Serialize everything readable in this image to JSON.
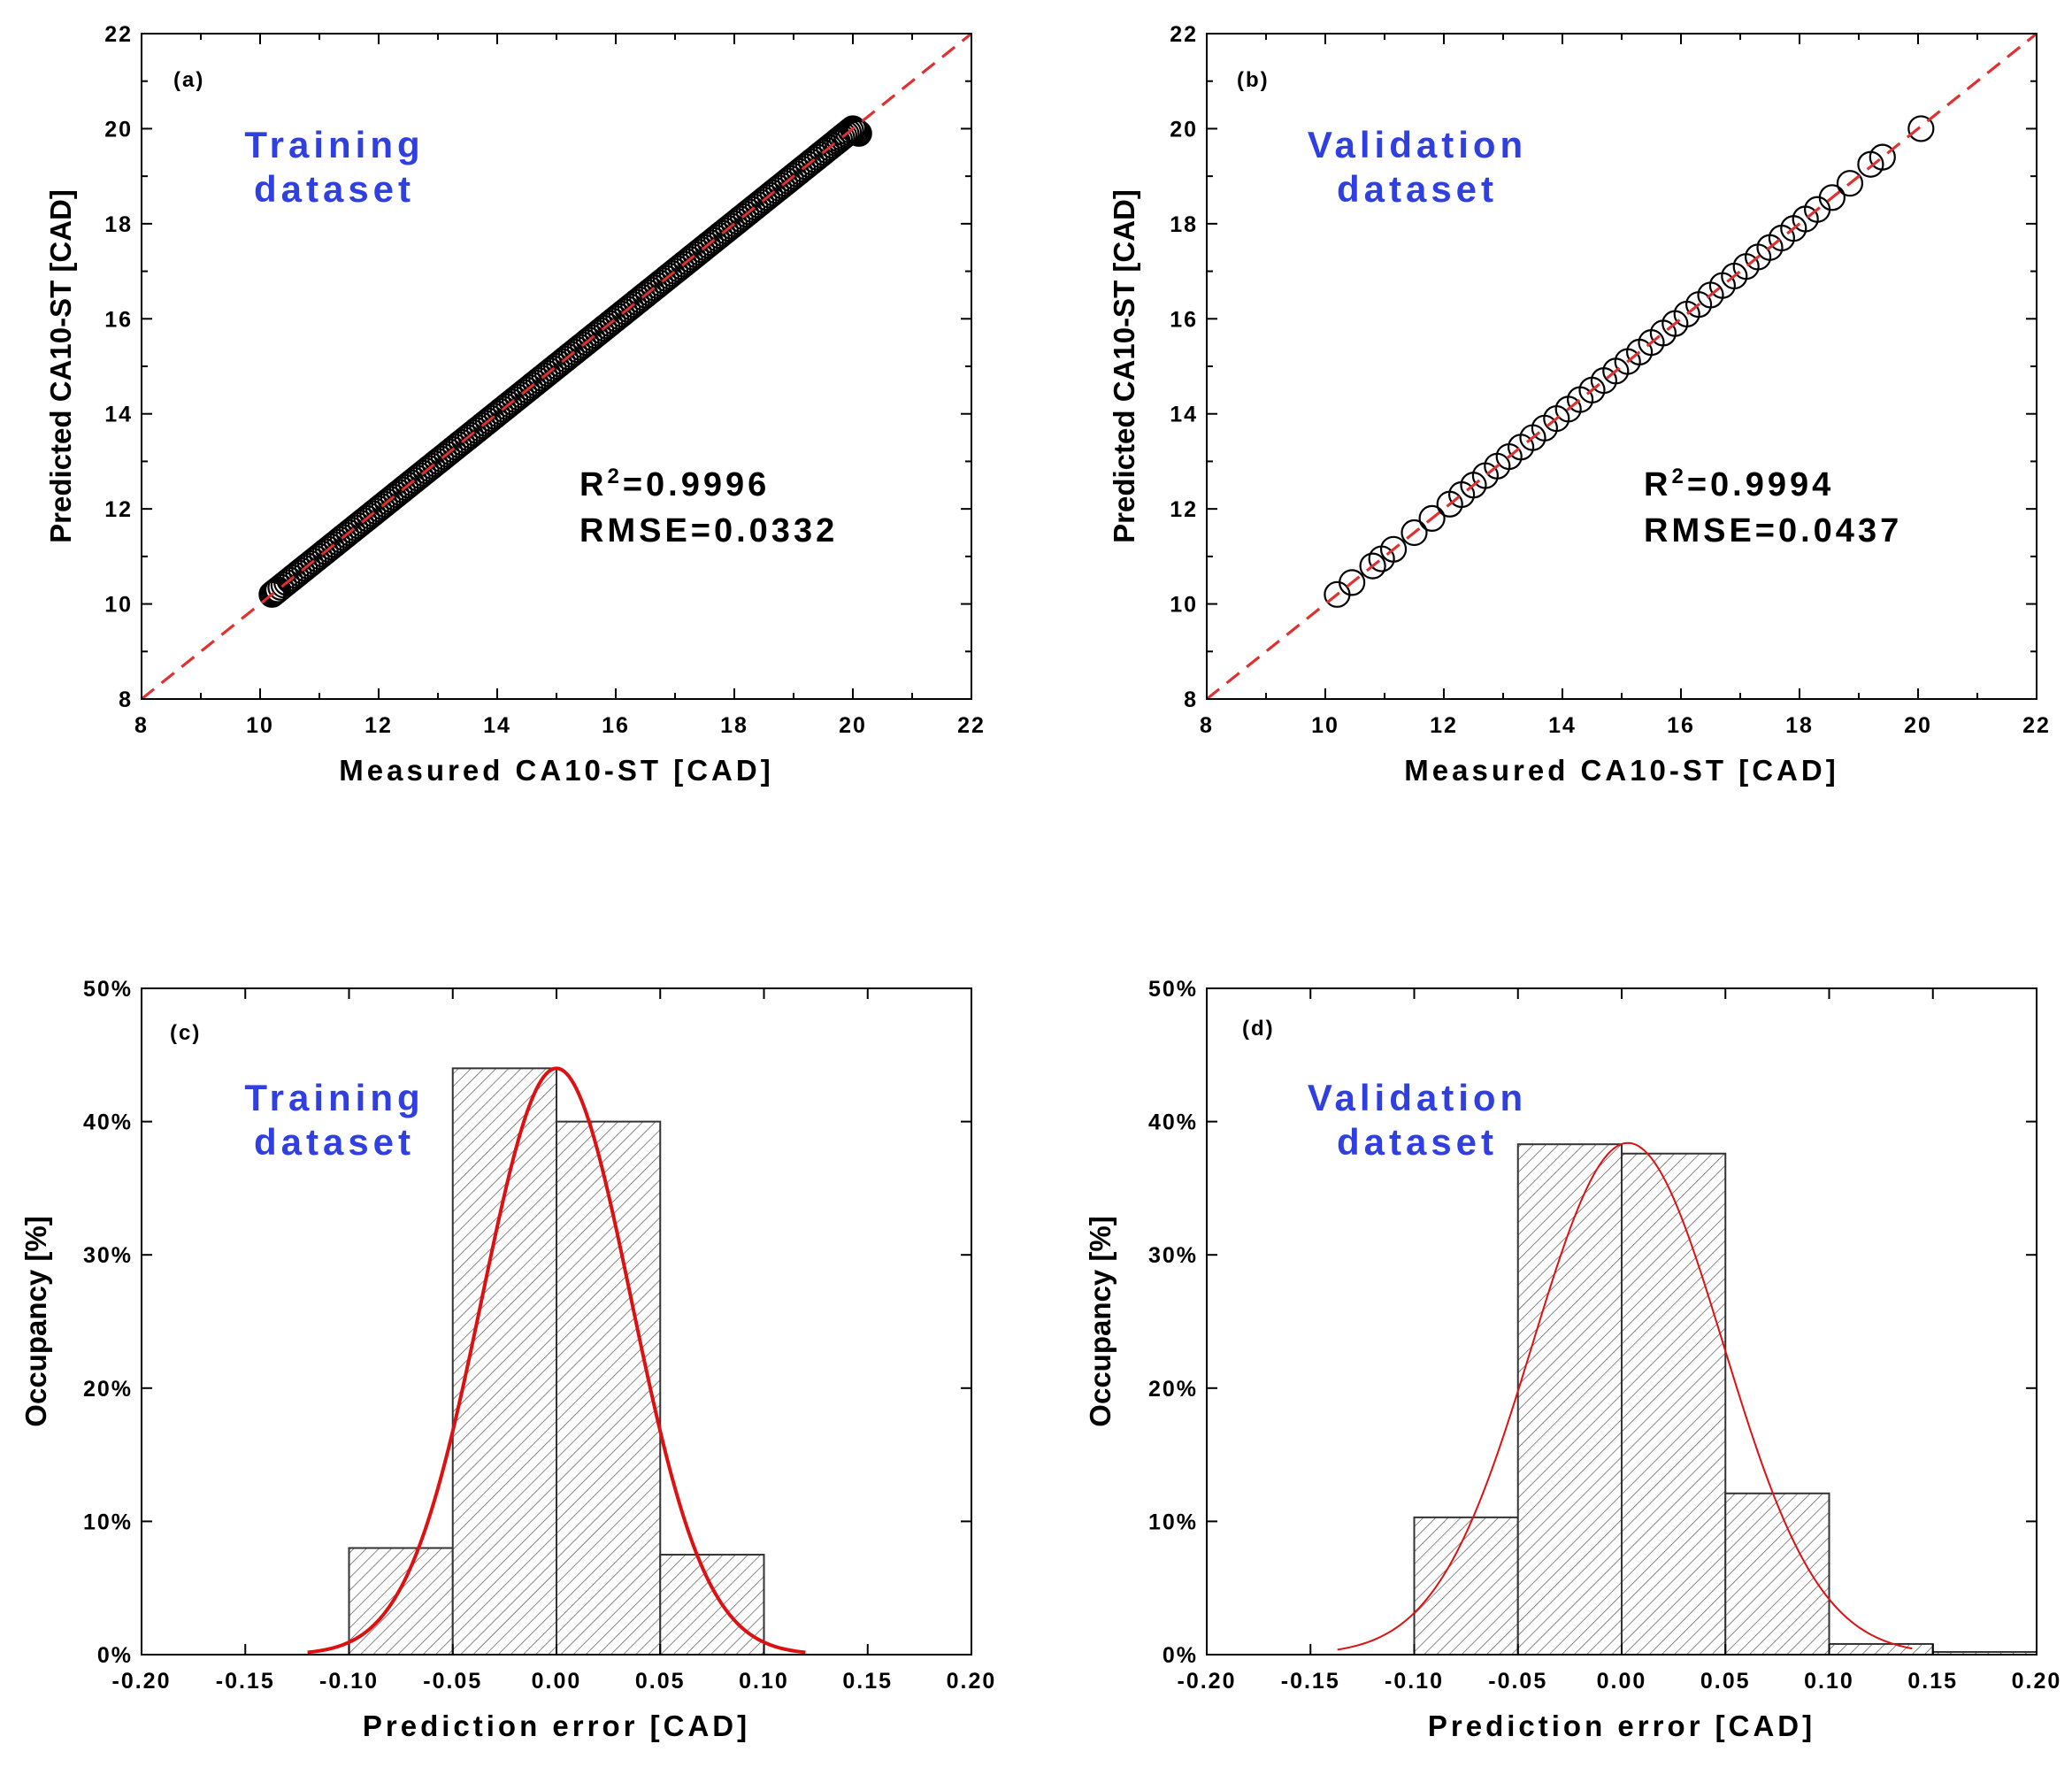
{
  "colors": {
    "dataset_label": "#2f3fe0",
    "reference_line": "#e03030",
    "fit_curve": "#dd1111",
    "marker": "#000000"
  },
  "chart_data": [
    {
      "type": "scatter",
      "panel": "(a)",
      "title": "",
      "dataset_label": [
        "Training",
        "dataset"
      ],
      "xlabel": "Measured CA10-ST [CAD]",
      "ylabel": "Predicted CA10-ST [CAD]",
      "xlim": [
        8,
        22
      ],
      "ylim": [
        8,
        22
      ],
      "xticks": [
        "8",
        "10",
        "12",
        "14",
        "16",
        "18",
        "20",
        "22"
      ],
      "yticks": [
        "8",
        "10",
        "12",
        "14",
        "16",
        "18",
        "20",
        "22"
      ],
      "stats": {
        "r2_label": "R",
        "r2_sup": "2",
        "r2_value": "=0.9996",
        "rmse": "RMSE=0.0332"
      },
      "reference_line": {
        "from": [
          8,
          8
        ],
        "to": [
          22,
          22
        ],
        "style": "dashed"
      },
      "x_range_measured": [
        10.2,
        20.1
      ],
      "points_note": "dense continuous band along y = x",
      "x": [
        10.2,
        10.3,
        10.5,
        10.7,
        10.9,
        11.1,
        11.3,
        11.5,
        11.7,
        11.9,
        12.1,
        12.3,
        12.5,
        12.7,
        12.9,
        13.1,
        13.3,
        13.5,
        13.7,
        13.9,
        14.1,
        14.3,
        14.5,
        14.7,
        14.9,
        15.1,
        15.3,
        15.5,
        15.7,
        15.9,
        16.1,
        16.3,
        16.5,
        16.7,
        16.9,
        17.1,
        17.3,
        17.5,
        17.7,
        17.9,
        18.1,
        18.3,
        18.5,
        18.7,
        18.9,
        19.1,
        19.3,
        19.5,
        19.7,
        19.85,
        20.0,
        20.1
      ],
      "y": [
        10.2,
        10.3,
        10.5,
        10.7,
        10.9,
        11.1,
        11.3,
        11.5,
        11.7,
        11.9,
        12.1,
        12.3,
        12.5,
        12.7,
        12.9,
        13.1,
        13.3,
        13.5,
        13.7,
        13.9,
        14.1,
        14.3,
        14.5,
        14.7,
        14.9,
        15.1,
        15.3,
        15.5,
        15.7,
        15.9,
        16.1,
        16.3,
        16.5,
        16.7,
        16.9,
        17.1,
        17.3,
        17.5,
        17.7,
        17.9,
        18.1,
        18.3,
        18.5,
        18.7,
        18.9,
        19.1,
        19.3,
        19.5,
        19.7,
        19.85,
        20.0,
        19.9
      ]
    },
    {
      "type": "scatter",
      "panel": "(b)",
      "title": "",
      "dataset_label": [
        "Validation",
        "dataset"
      ],
      "xlabel": "Measured CA10-ST [CAD]",
      "ylabel": "Predicted CA10-ST [CAD]",
      "xlim": [
        8,
        22
      ],
      "ylim": [
        8,
        22
      ],
      "xticks": [
        "8",
        "10",
        "12",
        "14",
        "16",
        "18",
        "20",
        "22"
      ],
      "yticks": [
        "8",
        "10",
        "12",
        "14",
        "16",
        "18",
        "20",
        "22"
      ],
      "stats": {
        "r2_label": "R",
        "r2_sup": "2",
        "r2_value": "=0.9994",
        "rmse": "RMSE=0.0437"
      },
      "reference_line": {
        "from": [
          8,
          8
        ],
        "to": [
          22,
          22
        ],
        "style": "dashed"
      },
      "x": [
        10.2,
        10.45,
        10.8,
        10.95,
        11.15,
        11.5,
        11.8,
        12.1,
        12.3,
        12.5,
        12.7,
        12.9,
        13.1,
        13.3,
        13.5,
        13.7,
        13.9,
        14.1,
        14.3,
        14.5,
        14.7,
        14.9,
        15.1,
        15.3,
        15.5,
        15.7,
        15.9,
        16.1,
        16.3,
        16.5,
        16.7,
        16.9,
        17.1,
        17.3,
        17.5,
        17.7,
        17.9,
        18.1,
        18.3,
        18.55,
        18.85,
        19.2,
        19.4,
        20.05
      ],
      "y": [
        10.2,
        10.45,
        10.8,
        10.95,
        11.15,
        11.5,
        11.8,
        12.1,
        12.3,
        12.5,
        12.7,
        12.9,
        13.1,
        13.3,
        13.5,
        13.7,
        13.9,
        14.1,
        14.3,
        14.5,
        14.7,
        14.9,
        15.1,
        15.3,
        15.5,
        15.7,
        15.9,
        16.1,
        16.3,
        16.5,
        16.7,
        16.9,
        17.1,
        17.3,
        17.5,
        17.7,
        17.9,
        18.1,
        18.3,
        18.55,
        18.85,
        19.25,
        19.4,
        20.0
      ]
    },
    {
      "type": "bar",
      "panel": "(c)",
      "title": "",
      "dataset_label": [
        "Training",
        "dataset"
      ],
      "xlabel": "Prediction error [CAD]",
      "ylabel": "Occupancy [%]",
      "xlim": [
        -0.2,
        0.2
      ],
      "ylim": [
        0,
        50
      ],
      "xticks": [
        "-0.20",
        "-0.15",
        "-0.10",
        "-0.05",
        "0.00",
        "0.05",
        "0.10",
        "0.15",
        "0.20"
      ],
      "yticks": [
        "0%",
        "10%",
        "20%",
        "30%",
        "40%",
        "50%"
      ],
      "bin_width": 0.05,
      "bin_starts": [
        -0.1,
        -0.05,
        0.0,
        0.05
      ],
      "values": [
        8,
        44,
        40,
        7.5
      ],
      "fit": {
        "type": "normal",
        "mean": 0.0,
        "sigma": 0.036,
        "peak": 44,
        "x_range": [
          -0.12,
          0.12
        ]
      }
    },
    {
      "type": "bar",
      "panel": "(d)",
      "title": "",
      "dataset_label": [
        "Validation",
        "dataset"
      ],
      "xlabel": "Prediction error [CAD]",
      "ylabel": "Occupancy [%]",
      "xlim": [
        -0.2,
        0.2
      ],
      "ylim": [
        0,
        50
      ],
      "xticks": [
        "-0.20",
        "-0.15",
        "-0.10",
        "-0.05",
        "0.00",
        "0.05",
        "0.10",
        "0.15",
        "0.20"
      ],
      "yticks": [
        "0%",
        "10%",
        "20%",
        "30%",
        "40%",
        "50%"
      ],
      "bin_width": 0.05,
      "bin_starts": [
        -0.1,
        -0.05,
        0.0,
        0.05,
        0.1,
        0.15
      ],
      "values": [
        10.3,
        38.3,
        37.6,
        12.1,
        0.8,
        0.2
      ],
      "fit": {
        "type": "normal",
        "mean": 0.003,
        "sigma": 0.046,
        "peak": 38.4,
        "x_range": [
          -0.137,
          0.14
        ]
      }
    }
  ]
}
